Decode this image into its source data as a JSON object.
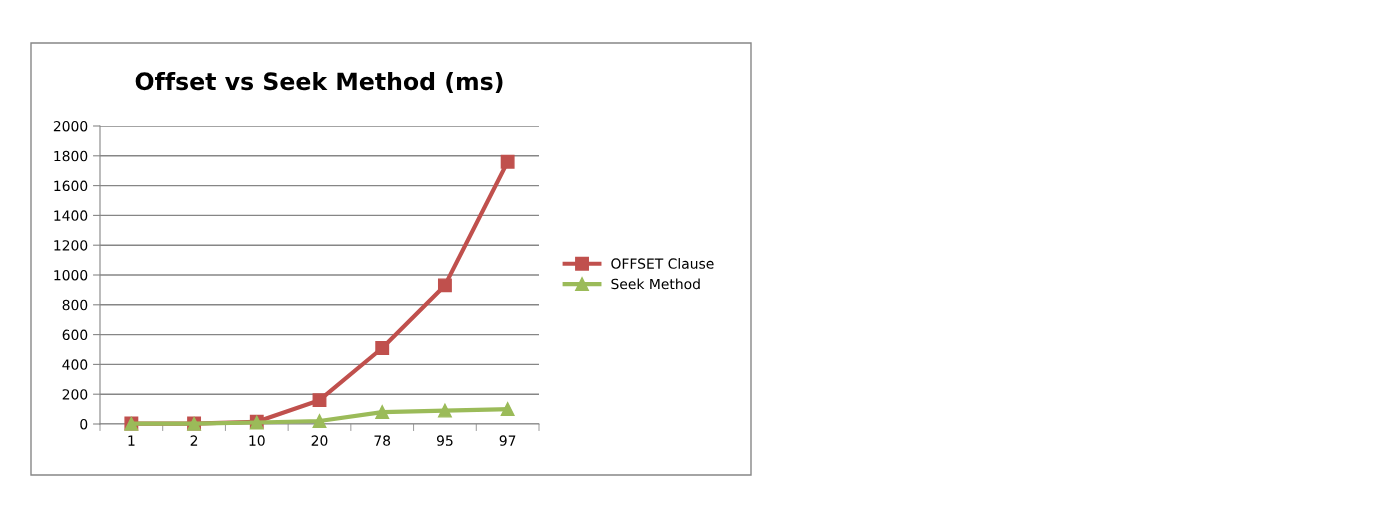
{
  "chart_data": {
    "type": "line",
    "title": "Offset vs Seek Method (ms)",
    "categories": [
      "1",
      "2",
      "10",
      "20",
      "78",
      "95",
      "97"
    ],
    "series": [
      {
        "name": "OFFSET Clause",
        "color": "#c0504d",
        "marker": "square",
        "values": [
          3,
          3,
          15,
          160,
          510,
          930,
          1760
        ]
      },
      {
        "name": "Seek Method",
        "color": "#9bbb59",
        "marker": "triangle",
        "values": [
          2,
          2,
          10,
          20,
          80,
          90,
          100
        ]
      }
    ],
    "ylim": [
      0,
      2000
    ],
    "yticks": [
      0,
      200,
      400,
      600,
      800,
      1000,
      1200,
      1400,
      1600,
      1800,
      2000
    ],
    "grid": "y",
    "legend": "right",
    "line_style": "solid"
  }
}
